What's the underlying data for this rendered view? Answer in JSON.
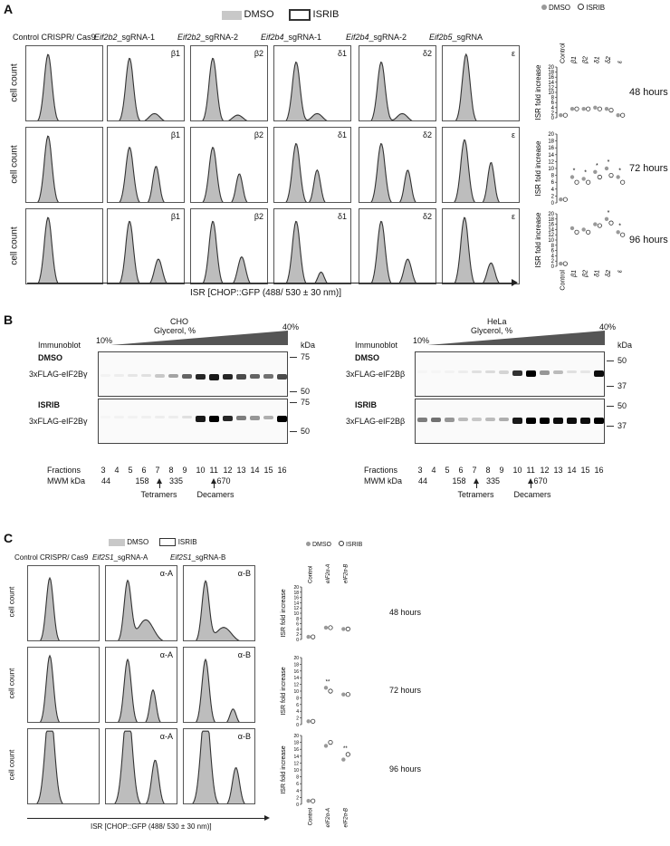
{
  "panelA": {
    "letter": "A",
    "legend_dmso": "DMSO",
    "legend_isrib": "ISRIB",
    "col_titles": [
      {
        "pre": "Control CRISPR/ Cas9",
        "gene": "",
        "post": ""
      },
      {
        "pre": "",
        "gene": "Eif2b2",
        "post": "_sgRNA-1"
      },
      {
        "pre": "",
        "gene": "Eif2b2",
        "post": "_sgRNA-2"
      },
      {
        "pre": "",
        "gene": "Eif2b4",
        "post": "_sgRNA-1"
      },
      {
        "pre": "",
        "gene": "Eif2b4",
        "post": "_sgRNA-2"
      },
      {
        "pre": "",
        "gene": "Eif2b5",
        "post": "_sgRNA"
      }
    ],
    "subunits": [
      "",
      "β1",
      "β2",
      "δ1",
      "δ2",
      "ε"
    ],
    "ylabel": "cell count",
    "xlabel": "ISR [CHOP::GFP (488/ 530 ± 30 nm)]",
    "time_labels": [
      "48 hours",
      "72 hours",
      "96 hours"
    ],
    "plot_legend_dmso": "DMSO",
    "plot_legend_isrib": "ISRIB",
    "plot_ylabel": "ISR fold increase",
    "plot_categories": [
      "Control",
      "β1",
      "β2",
      "δ1",
      "δ2",
      "ε"
    ],
    "star": "*"
  },
  "panelB": {
    "letter": "B",
    "left": {
      "cell_line": "CHO",
      "gradient_label": "Glycerol, %",
      "low": "10%",
      "high": "40%",
      "immunoblot": "Immunoblot",
      "kda": "kDa",
      "dmso": "DMSO",
      "isrib": "ISRIB",
      "protein": "3xFLAG-eIF2Bγ",
      "markers_top": [
        "75",
        "50"
      ],
      "markers_bottom": [
        "75",
        "50"
      ],
      "fractions_label": "Fractions",
      "fractions": [
        "3",
        "4",
        "5",
        "6",
        "7",
        "8",
        "9",
        "10",
        "11",
        "12",
        "13",
        "14",
        "15",
        "16"
      ],
      "mwm_label": "MWM kDa",
      "mwm": [
        "44",
        "158",
        "335",
        "670"
      ],
      "tetramers": "Tetramers",
      "decamers": "Decamers"
    },
    "right": {
      "cell_line": "HeLa",
      "gradient_label": "Glycerol, %",
      "low": "10%",
      "high": "40%",
      "immunoblot": "Immunoblot",
      "kda": "kDa",
      "dmso": "DMSO",
      "isrib": "ISRIB",
      "protein": "3xFLAG-eIF2Bβ",
      "markers_top": [
        "50",
        "37"
      ],
      "markers_bottom": [
        "50",
        "37"
      ],
      "fractions_label": "Fractions",
      "fractions": [
        "3",
        "4",
        "5",
        "6",
        "7",
        "8",
        "9",
        "10",
        "11",
        "12",
        "13",
        "14",
        "15",
        "16"
      ],
      "mwm_label": "MWM kDa",
      "mwm": [
        "44",
        "158",
        "335",
        "670"
      ],
      "tetramers": "Tetramers",
      "decamers": "Decamers"
    }
  },
  "panelC": {
    "letter": "C",
    "legend_dmso": "DMSO",
    "legend_isrib": "ISRIB",
    "col_titles": [
      {
        "pre": "Control CRISPR/ Cas9",
        "gene": "",
        "post": ""
      },
      {
        "pre": "",
        "gene": "Eif2S1",
        "post": "_sgRNA-A"
      },
      {
        "pre": "",
        "gene": "Eif2S1",
        "post": "_sgRNA-B"
      }
    ],
    "subunits": [
      "",
      "α-A",
      "α-B"
    ],
    "ylabel": "cell count",
    "xlabel": "ISR [CHOP::GFP (488/ 530 ± 30 nm)]",
    "time_labels": [
      "48 hours",
      "72 hours",
      "96 hours"
    ],
    "plot_legend_dmso": "DMSO",
    "plot_legend_isrib": "ISRIB",
    "plot_ylabel": "ISR fold increase",
    "plot_categories": [
      "Control",
      "eIF2α-A",
      "eIF2α-B"
    ],
    "star2": "**"
  },
  "chart_data": [
    {
      "type": "scatter",
      "title": "48 hours",
      "categories": [
        "Control",
        "β1",
        "β2",
        "δ1",
        "δ2",
        "ε"
      ],
      "ylabel": "ISR fold increase",
      "ylim": [
        0,
        20
      ],
      "yticks": [
        0,
        2,
        4,
        6,
        8,
        10,
        12,
        14,
        16,
        18,
        20
      ],
      "series": [
        {
          "name": "DMSO",
          "values": [
            1,
            3.5,
            3.5,
            4,
            3.5,
            1
          ]
        },
        {
          "name": "ISRIB",
          "values": [
            1,
            3.5,
            3.5,
            3.5,
            3,
            1
          ]
        }
      ]
    },
    {
      "type": "scatter",
      "title": "72 hours",
      "categories": [
        "Control",
        "β1",
        "β2",
        "δ1",
        "δ2",
        "ε"
      ],
      "ylabel": "ISR fold increase",
      "ylim": [
        0,
        20
      ],
      "yticks": [
        0,
        2,
        4,
        6,
        8,
        10,
        12,
        14,
        16,
        18,
        20
      ],
      "annotations": [
        "*",
        "*",
        "*",
        "*",
        "*"
      ],
      "series": [
        {
          "name": "DMSO",
          "values": [
            1,
            7.5,
            7,
            9,
            10,
            7.5
          ]
        },
        {
          "name": "ISRIB",
          "values": [
            1,
            6,
            6,
            7.5,
            8,
            6
          ]
        }
      ]
    },
    {
      "type": "scatter",
      "title": "96 hours",
      "categories": [
        "Control",
        "β1",
        "β2",
        "δ1",
        "δ2",
        "ε"
      ],
      "ylabel": "ISR fold increase",
      "ylim": [
        0,
        20
      ],
      "yticks": [
        0,
        2,
        4,
        6,
        8,
        10,
        12,
        14,
        16,
        18,
        20
      ],
      "annotations": [
        "*",
        "*"
      ],
      "series": [
        {
          "name": "DMSO",
          "values": [
            1,
            14.5,
            14,
            16,
            18,
            13
          ]
        },
        {
          "name": "ISRIB",
          "values": [
            1,
            13,
            13,
            15.5,
            16.5,
            12
          ]
        }
      ]
    },
    {
      "type": "scatter",
      "title": "48 hours",
      "categories": [
        "Control",
        "eIF2α-A",
        "eIF2α-B"
      ],
      "ylabel": "ISR fold increase",
      "ylim": [
        0,
        20
      ],
      "yticks": [
        0,
        2,
        4,
        6,
        8,
        10,
        12,
        14,
        16,
        18,
        20
      ],
      "series": [
        {
          "name": "DMSO",
          "values": [
            1,
            4.5,
            4
          ]
        },
        {
          "name": "ISRIB",
          "values": [
            1,
            4.5,
            4
          ]
        }
      ]
    },
    {
      "type": "scatter",
      "title": "72 hours",
      "categories": [
        "Control",
        "eIF2α-A",
        "eIF2α-B"
      ],
      "ylabel": "ISR fold increase",
      "ylim": [
        0,
        20
      ],
      "yticks": [
        0,
        2,
        4,
        6,
        8,
        10,
        12,
        14,
        16,
        18,
        20
      ],
      "annotations": [
        "**"
      ],
      "series": [
        {
          "name": "DMSO",
          "values": [
            1,
            11,
            9
          ]
        },
        {
          "name": "ISRIB",
          "values": [
            1,
            10,
            9
          ]
        }
      ]
    },
    {
      "type": "scatter",
      "title": "96 hours",
      "categories": [
        "Control",
        "eIF2α-A",
        "eIF2α-B"
      ],
      "ylabel": "ISR fold increase",
      "ylim": [
        0,
        20
      ],
      "yticks": [
        0,
        2,
        4,
        6,
        8,
        10,
        12,
        14,
        16,
        18,
        20
      ],
      "annotations": [
        "**"
      ],
      "series": [
        {
          "name": "DMSO",
          "values": [
            1,
            17,
            13
          ]
        },
        {
          "name": "ISRIB",
          "values": [
            1,
            18,
            14.5
          ]
        }
      ]
    }
  ],
  "colors": {
    "dmso": "#bdbdbd",
    "isrib_line": "#333333",
    "gradient": "#555555"
  }
}
